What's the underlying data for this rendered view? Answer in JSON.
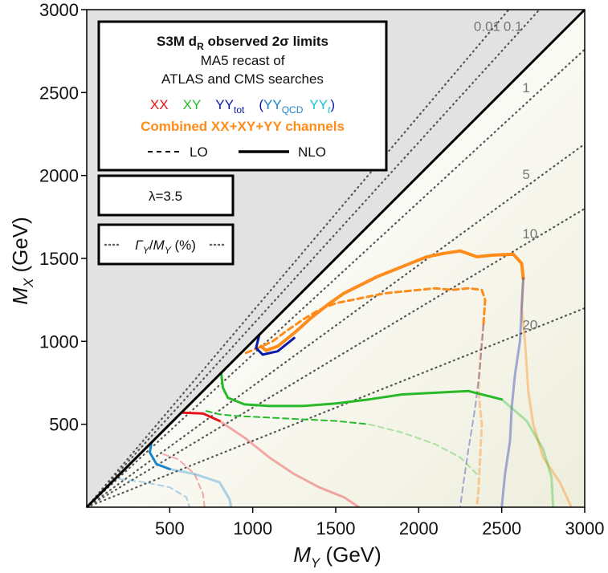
{
  "chart_data": {
    "type": "line",
    "title": "S3M d_R observed 2σ limits",
    "xlabel_var": "M",
    "xlabel_sub": "Y",
    "xlabel_unit": " (GeV)",
    "ylabel_var": "M",
    "ylabel_sub": "X",
    "ylabel_unit": " (GeV)",
    "xlim": [
      0,
      3000
    ],
    "ylim": [
      0,
      3000
    ],
    "xticks": [
      "500",
      "1000",
      "1500",
      "2000",
      "2500",
      "3000"
    ],
    "yticks": [
      "500",
      "1000",
      "1500",
      "2000",
      "2500",
      "3000"
    ],
    "legend": {
      "title_main": "S3M d",
      "title_sub": "R",
      "title_rest": " observed 2σ limits",
      "line2": "MA5 recast of",
      "line3": "ATLAS and CMS searches",
      "xx": "XX",
      "xy": "XY",
      "yy": "YY",
      "yy_sub": "tot",
      "paren_open": "(",
      "yyqcd": "YY",
      "yyqcd_sub": "QCD",
      "yyt": "YY",
      "yyt_sub": "t",
      "paren_close": ")",
      "combined": "Combined XX+XY+YY channels",
      "lo": "LO",
      "nlo": "NLO"
    },
    "lambda_label": "λ=3.5",
    "width_legend": {
      "gamma": "Γ",
      "gamma_sub": "Y",
      "slash": "/",
      "m": "M",
      "m_sub": "Y",
      "pct": " (%)"
    },
    "width_contours": [
      {
        "label": "0.01",
        "slope": 1.18
      },
      {
        "label": "0.1",
        "slope": 1.1
      },
      {
        "label": "1",
        "slope": 0.92
      },
      {
        "label": "5",
        "slope": 0.73
      },
      {
        "label": "10",
        "slope": 0.6
      },
      {
        "label": "20",
        "slope": 0.4
      }
    ],
    "colors": {
      "xx": "#e8141b",
      "xy": "#28b928",
      "yy": "#0a1aa8",
      "yyqcd": "#1c86c9",
      "yyt": "#18c6d6",
      "combined": "#ff8c1a",
      "forbidden": "#e2e2e2",
      "contour": "#555555"
    },
    "series": [
      {
        "name": "Combined NLO",
        "color": "#ff8c1a",
        "dash": false,
        "width": 4,
        "opacity": 1,
        "points": [
          [
            1050,
            970
          ],
          [
            1080,
            945
          ],
          [
            1150,
            970
          ],
          [
            1250,
            1050
          ],
          [
            1350,
            1140
          ],
          [
            1450,
            1220
          ],
          [
            1550,
            1290
          ],
          [
            1650,
            1340
          ],
          [
            1750,
            1390
          ],
          [
            1850,
            1430
          ],
          [
            1950,
            1470
          ],
          [
            2050,
            1510
          ],
          [
            2150,
            1530
          ],
          [
            2250,
            1545
          ],
          [
            2350,
            1510
          ],
          [
            2450,
            1520
          ],
          [
            2570,
            1525
          ],
          [
            2620,
            1470
          ],
          [
            2630,
            1380
          ]
        ]
      },
      {
        "name": "Combined NLO (faded)",
        "color": "#ff8c1a",
        "dash": false,
        "width": 3,
        "opacity": 0.4,
        "points": [
          [
            2630,
            1380
          ],
          [
            2620,
            1200
          ],
          [
            2640,
            1000
          ],
          [
            2660,
            700
          ],
          [
            2690,
            500
          ],
          [
            2750,
            300
          ],
          [
            2850,
            150
          ],
          [
            2920,
            0
          ]
        ]
      },
      {
        "name": "Combined LO",
        "color": "#ff8c1a",
        "dash": true,
        "width": 3,
        "opacity": 1,
        "points": [
          [
            960,
            930
          ],
          [
            1030,
            960
          ],
          [
            1120,
            1000
          ],
          [
            1200,
            1060
          ],
          [
            1300,
            1130
          ],
          [
            1400,
            1190
          ],
          [
            1500,
            1230
          ],
          [
            1600,
            1250
          ],
          [
            1700,
            1270
          ],
          [
            1800,
            1290
          ],
          [
            1900,
            1300
          ],
          [
            2000,
            1310
          ],
          [
            2100,
            1320
          ],
          [
            2200,
            1310
          ],
          [
            2300,
            1320
          ],
          [
            2380,
            1310
          ],
          [
            2400,
            1250
          ],
          [
            2390,
            1100
          ]
        ]
      },
      {
        "name": "Combined LO (faded)",
        "color": "#ff8c1a",
        "dash": true,
        "width": 3,
        "opacity": 0.4,
        "points": [
          [
            2390,
            1100
          ],
          [
            2370,
            900
          ],
          [
            2360,
            700
          ],
          [
            2380,
            500
          ],
          [
            2370,
            300
          ],
          [
            2360,
            100
          ],
          [
            2350,
            0
          ]
        ]
      },
      {
        "name": "YY_tot NLO",
        "color": "#0a1aa8",
        "dash": false,
        "width": 3,
        "opacity": 1,
        "points": [
          [
            1040,
            1040
          ],
          [
            1020,
            960
          ],
          [
            1060,
            920
          ],
          [
            1150,
            940
          ],
          [
            1250,
            1020
          ]
        ]
      },
      {
        "name": "YY_tot NLO (faded)",
        "color": "#0a1aa8",
        "dash": false,
        "width": 3,
        "opacity": 0.35,
        "points": [
          [
            2630,
            1380
          ],
          [
            2620,
            1200
          ],
          [
            2610,
            1000
          ],
          [
            2580,
            800
          ],
          [
            2560,
            600
          ],
          [
            2550,
            400
          ],
          [
            2520,
            200
          ],
          [
            2500,
            0
          ]
        ]
      },
      {
        "name": "YY_tot LO (faded)",
        "color": "#0a1aa8",
        "dash": true,
        "width": 2,
        "opacity": 0.35,
        "points": [
          [
            2390,
            1100
          ],
          [
            2370,
            850
          ],
          [
            2340,
            600
          ],
          [
            2300,
            350
          ],
          [
            2270,
            150
          ],
          [
            2250,
            0
          ]
        ]
      },
      {
        "name": "XY NLO",
        "color": "#28b928",
        "dash": false,
        "width": 3,
        "opacity": 1,
        "points": [
          [
            810,
            810
          ],
          [
            820,
            720
          ],
          [
            850,
            660
          ],
          [
            950,
            620
          ],
          [
            1100,
            610
          ],
          [
            1300,
            610
          ],
          [
            1500,
            625
          ],
          [
            1700,
            650
          ],
          [
            1900,
            680
          ],
          [
            2100,
            690
          ],
          [
            2300,
            700
          ],
          [
            2500,
            650
          ]
        ]
      },
      {
        "name": "XY NLO (faded)",
        "color": "#28b928",
        "dash": false,
        "width": 3,
        "opacity": 0.35,
        "points": [
          [
            2500,
            650
          ],
          [
            2650,
            520
          ],
          [
            2750,
            350
          ],
          [
            2800,
            180
          ],
          [
            2810,
            0
          ]
        ]
      },
      {
        "name": "XY LO",
        "color": "#28b928",
        "dash": true,
        "width": 2,
        "opacity": 1,
        "points": [
          [
            720,
            580
          ],
          [
            800,
            560
          ],
          [
            900,
            550
          ],
          [
            1100,
            540
          ],
          [
            1300,
            530
          ],
          [
            1500,
            520
          ],
          [
            1700,
            500
          ]
        ]
      },
      {
        "name": "XY LO (faded)",
        "color": "#28b928",
        "dash": true,
        "width": 2,
        "opacity": 0.35,
        "points": [
          [
            1700,
            500
          ],
          [
            1900,
            450
          ],
          [
            2100,
            380
          ],
          [
            2250,
            300
          ],
          [
            2350,
            200
          ]
        ]
      },
      {
        "name": "XX NLO",
        "color": "#e8141b",
        "dash": false,
        "width": 3,
        "opacity": 1,
        "points": [
          [
            580,
            570
          ],
          [
            700,
            565
          ],
          [
            800,
            520
          ]
        ]
      },
      {
        "name": "XX NLO (faded)",
        "color": "#e8141b",
        "dash": false,
        "width": 3,
        "opacity": 0.35,
        "points": [
          [
            800,
            520
          ],
          [
            950,
            420
          ],
          [
            1100,
            300
          ],
          [
            1250,
            200
          ],
          [
            1400,
            120
          ],
          [
            1550,
            60
          ],
          [
            1640,
            0
          ]
        ]
      },
      {
        "name": "XX LO (faded)",
        "color": "#e8141b",
        "dash": true,
        "width": 2,
        "opacity": 0.35,
        "points": [
          [
            460,
            320
          ],
          [
            550,
            290
          ],
          [
            650,
            200
          ],
          [
            700,
            80
          ],
          [
            710,
            0
          ]
        ]
      },
      {
        "name": "YY_QCD NLO",
        "color": "#1c86c9",
        "dash": false,
        "width": 3,
        "opacity": 1,
        "points": [
          [
            390,
            390
          ],
          [
            380,
            330
          ],
          [
            420,
            260
          ],
          [
            500,
            230
          ]
        ]
      },
      {
        "name": "YY_QCD NLO (faded)",
        "color": "#1c86c9",
        "dash": false,
        "width": 3,
        "opacity": 0.35,
        "points": [
          [
            500,
            230
          ],
          [
            650,
            200
          ],
          [
            800,
            150
          ],
          [
            860,
            50
          ],
          [
            870,
            0
          ]
        ]
      },
      {
        "name": "YY_QCD LO (faded)",
        "color": "#1c86c9",
        "dash": true,
        "width": 2,
        "opacity": 0.35,
        "points": [
          [
            200,
            170
          ],
          [
            350,
            150
          ],
          [
            500,
            120
          ],
          [
            600,
            60
          ],
          [
            620,
            0
          ]
        ]
      }
    ]
  }
}
